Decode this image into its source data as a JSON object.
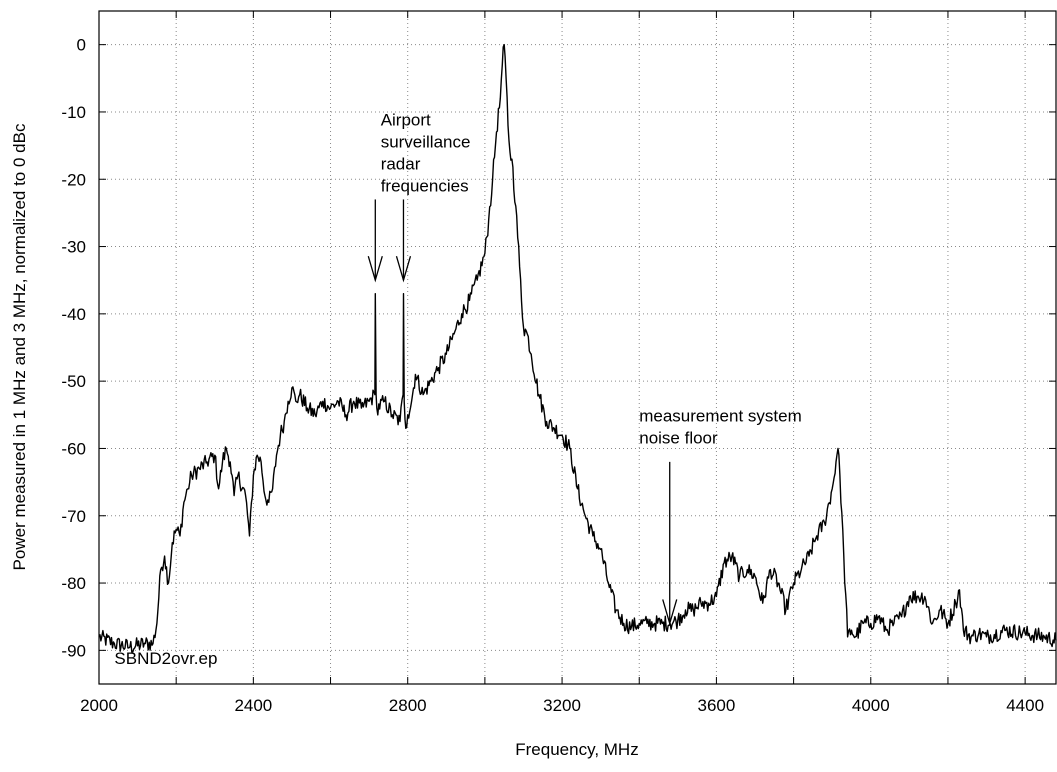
{
  "chart_data": {
    "type": "line",
    "xlabel": "Frequency, MHz",
    "ylabel": "Power measured in 1 MHz and 3 MHz, normalized to 0 dBc",
    "xlim": [
      2000,
      4480
    ],
    "ylim": [
      -95,
      5
    ],
    "x_ticks": [
      2000,
      2400,
      2800,
      3200,
      3600,
      4000,
      4400
    ],
    "x_minor_ticks": [
      2200,
      2600,
      3000,
      3400,
      3800,
      4200
    ],
    "y_ticks": [
      0,
      -10,
      -20,
      -30,
      -40,
      -50,
      -60,
      -70,
      -80,
      -90
    ],
    "grid": true,
    "series": [
      {
        "color": "#000000",
        "x": [
          2000,
          2040,
          2080,
          2120,
          2140,
          2150,
          2160,
          2170,
          2180,
          2190,
          2200,
          2210,
          2220,
          2230,
          2240,
          2260,
          2280,
          2300,
          2310,
          2320,
          2330,
          2340,
          2350,
          2360,
          2380,
          2390,
          2400,
          2410,
          2420,
          2430,
          2440,
          2450,
          2460,
          2470,
          2480,
          2490,
          2500,
          2510,
          2520,
          2540,
          2560,
          2580,
          2600,
          2620,
          2640,
          2660,
          2680,
          2700,
          2715,
          2716,
          2718,
          2720,
          2740,
          2760,
          2780,
          2788,
          2789,
          2791,
          2795,
          2800,
          2810,
          2820,
          2840,
          2860,
          2880,
          2900,
          2920,
          2940,
          2960,
          2980,
          3000,
          3010,
          3020,
          3030,
          3040,
          3045,
          3050,
          3055,
          3060,
          3065,
          3070,
          3080,
          3090,
          3100,
          3110,
          3120,
          3140,
          3160,
          3180,
          3200,
          3220,
          3240,
          3260,
          3280,
          3300,
          3320,
          3340,
          3360,
          3380,
          3400,
          3420,
          3440,
          3460,
          3480,
          3500,
          3520,
          3540,
          3560,
          3580,
          3600,
          3620,
          3640,
          3660,
          3680,
          3700,
          3720,
          3740,
          3760,
          3780,
          3800,
          3820,
          3840,
          3860,
          3880,
          3900,
          3910,
          3915,
          3920,
          3930,
          3940,
          3950,
          3960,
          3980,
          4000,
          4020,
          4040,
          4060,
          4080,
          4100,
          4120,
          4140,
          4160,
          4180,
          4200,
          4220,
          4230,
          4240,
          4260,
          4280,
          4300,
          4350,
          4400,
          4450,
          4480
        ],
        "y": [
          -88,
          -89,
          -89.5,
          -89,
          -89,
          -86,
          -78,
          -76,
          -80,
          -74,
          -72,
          -73,
          -68,
          -66,
          -64,
          -63,
          -62,
          -61,
          -66,
          -62,
          -60,
          -62,
          -67,
          -64,
          -67,
          -73,
          -64,
          -61,
          -62,
          -67,
          -68,
          -66,
          -61,
          -58,
          -56,
          -53,
          -51,
          -53,
          -52,
          -54,
          -55,
          -53,
          -54,
          -53,
          -55,
          -53,
          -54,
          -53,
          -52,
          -37,
          -52,
          -54,
          -53,
          -55,
          -56,
          -52,
          -37,
          -53,
          -57,
          -55,
          -53,
          -49,
          -52,
          -50,
          -48,
          -46,
          -43,
          -40,
          -38,
          -35,
          -31,
          -26,
          -20,
          -13,
          -8,
          -3,
          0,
          -5,
          -12,
          -16,
          -17,
          -24,
          -33,
          -42,
          -43,
          -46,
          -52,
          -56,
          -57,
          -58,
          -60,
          -66,
          -70,
          -73,
          -75,
          -80,
          -84,
          -86,
          -86.5,
          -86,
          -86,
          -86,
          -86,
          -86,
          -85.5,
          -84,
          -84,
          -83,
          -83,
          -82,
          -77,
          -76,
          -79,
          -78,
          -79,
          -83,
          -78,
          -80,
          -84,
          -80,
          -78,
          -76,
          -73,
          -71,
          -66,
          -62,
          -60,
          -64,
          -76,
          -88,
          -87,
          -88,
          -86,
          -86,
          -85,
          -87,
          -86,
          -85,
          -82,
          -82,
          -82,
          -86,
          -84,
          -86,
          -83,
          -81,
          -87,
          -88,
          -87.5,
          -88,
          -87,
          -87.5,
          -88,
          -88.5
        ]
      }
    ],
    "annotations": [
      {
        "text": [
          "Airport",
          "surveillance",
          "radar",
          "frequencies"
        ],
        "x": 2730,
        "y": -12
      },
      {
        "text": [
          "measurement system",
          "noise floor"
        ],
        "x": 3400,
        "y": -56
      },
      {
        "text": [
          "SBND2ovr.ep"
        ],
        "x": 2040,
        "y": -92
      }
    ],
    "arrows": [
      {
        "from": [
          2716,
          -23
        ],
        "to": [
          2716,
          -35
        ]
      },
      {
        "from": [
          2789,
          -23
        ],
        "to": [
          2789,
          -35
        ]
      },
      {
        "from": [
          3479,
          -62
        ],
        "to": [
          3479,
          -86
        ]
      }
    ]
  }
}
